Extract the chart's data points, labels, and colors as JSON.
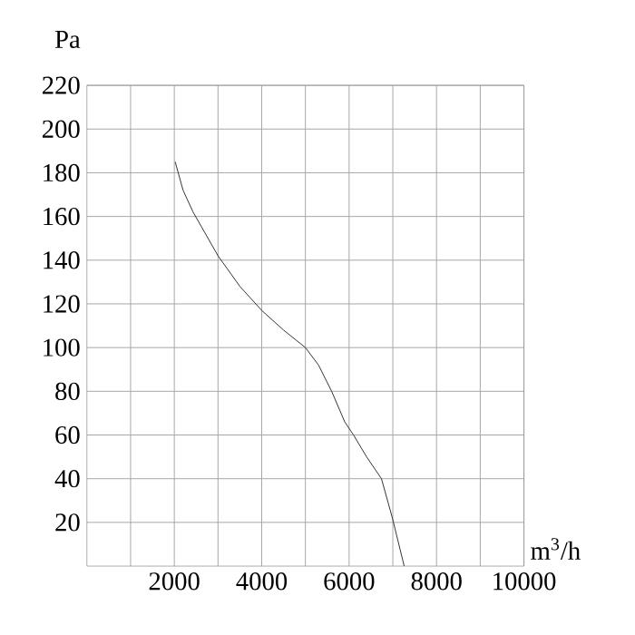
{
  "chart_data": {
    "type": "line",
    "xlabel": "m$^{3}$/h",
    "ylabel": "Pa",
    "x": [
      2020,
      2200,
      2430,
      3000,
      3500,
      4000,
      4500,
      5000,
      5300,
      5600,
      5900,
      6100,
      6400,
      6740,
      6990,
      7260
    ],
    "series": [
      {
        "color": "#333333",
        "values": [
          185,
          172,
          162,
          142,
          128,
          117,
          108,
          100,
          92,
          80,
          66,
          60,
          50,
          40,
          22,
          0
        ]
      }
    ],
    "xlim": [
      0,
      10000
    ],
    "ylim": [
      0,
      220
    ],
    "xticks": [
      {
        "value": 1000,
        "label": null
      },
      2000,
      {
        "value": 3000,
        "label": null
      },
      4000,
      {
        "value": 5000,
        "label": null
      },
      6000,
      {
        "value": 7000,
        "label": null
      },
      8000,
      {
        "value": 9000,
        "label": null
      },
      10000
    ],
    "yticks": [
      20,
      40,
      60,
      80,
      100,
      120,
      140,
      160,
      180,
      200,
      220
    ],
    "grid": true,
    "marker": "none",
    "line_style": "solid"
  }
}
